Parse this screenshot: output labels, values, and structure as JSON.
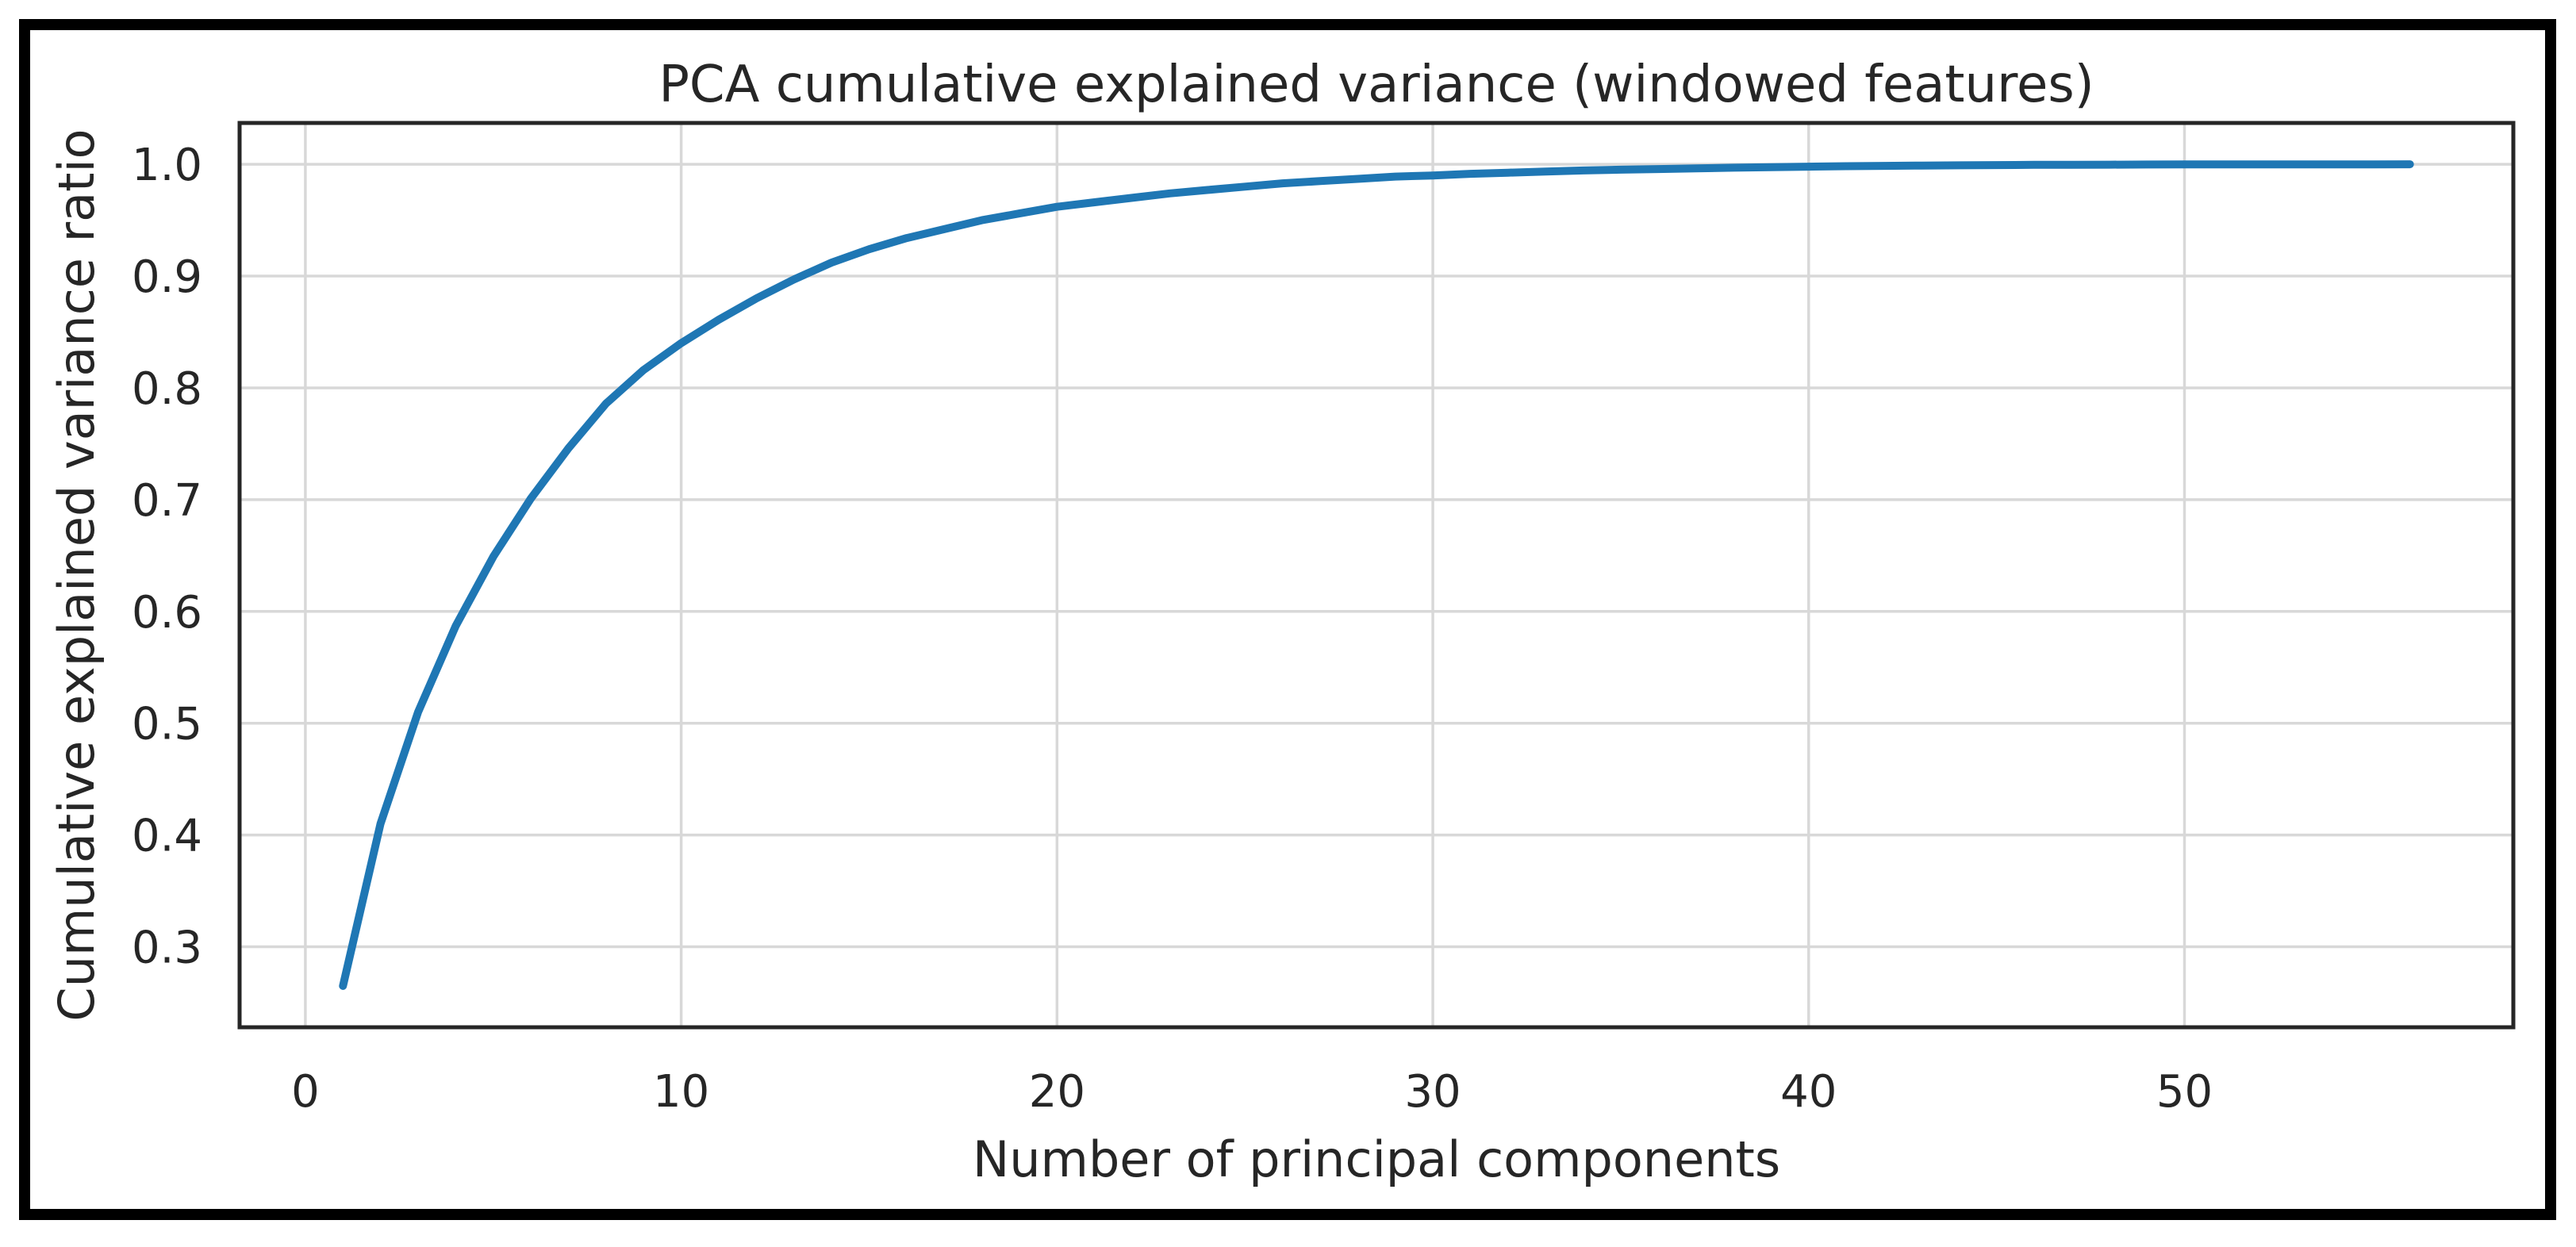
{
  "chart_data": {
    "type": "line",
    "title": "PCA cumulative explained variance (windowed features)",
    "xlabel": "Number of principal components",
    "ylabel": "Cumulative explained variance ratio",
    "series": [
      {
        "name": "cumulative explained variance ratio",
        "x": [
          1,
          2,
          3,
          4,
          5,
          6,
          7,
          8,
          9,
          10,
          11,
          12,
          13,
          14,
          15,
          16,
          17,
          18,
          19,
          20,
          21,
          22,
          23,
          24,
          25,
          26,
          27,
          28,
          29,
          30,
          31,
          32,
          33,
          34,
          35,
          36,
          37,
          38,
          39,
          40,
          41,
          42,
          43,
          44,
          45,
          46,
          47,
          48,
          49,
          50,
          51,
          52,
          53,
          54,
          55,
          56
        ],
        "y": [
          0.265,
          0.41,
          0.51,
          0.587,
          0.649,
          0.701,
          0.746,
          0.786,
          0.816,
          0.84,
          0.861,
          0.88,
          0.897,
          0.912,
          0.924,
          0.934,
          0.942,
          0.95,
          0.956,
          0.962,
          0.966,
          0.97,
          0.974,
          0.977,
          0.98,
          0.983,
          0.985,
          0.987,
          0.989,
          0.99,
          0.9915,
          0.9925,
          0.9935,
          0.9945,
          0.9952,
          0.9958,
          0.9964,
          0.997,
          0.9975,
          0.9979,
          0.9983,
          0.9986,
          0.9989,
          0.9991,
          0.9993,
          0.9995,
          0.9996,
          0.9997,
          0.9998,
          0.99985,
          0.9999,
          0.99993,
          0.99996,
          0.99998,
          0.99999,
          1.0
        ]
      }
    ],
    "x_ticks": [
      0,
      10,
      20,
      30,
      40,
      50
    ],
    "x_tick_labels": [
      "0",
      "10",
      "20",
      "30",
      "40",
      "50"
    ],
    "y_ticks": [
      1.0,
      0.9,
      0.8,
      0.7,
      0.6,
      0.5,
      0.4,
      0.3
    ],
    "y_tick_labels": [
      "1.0",
      "0.9",
      "0.8",
      "0.7",
      "0.6",
      "0.5",
      "0.4",
      "0.3"
    ],
    "xlim": [
      -1.75,
      58.75
    ],
    "ylim": [
      0.228,
      1.037
    ],
    "grid": true,
    "legend": "none",
    "line_color": "#1f77b4",
    "grid_color": "#d8d8d8",
    "frame_color": "#262626",
    "text_color": "#262626",
    "outer_border_color": "#000000",
    "background_color": "#ffffff"
  }
}
